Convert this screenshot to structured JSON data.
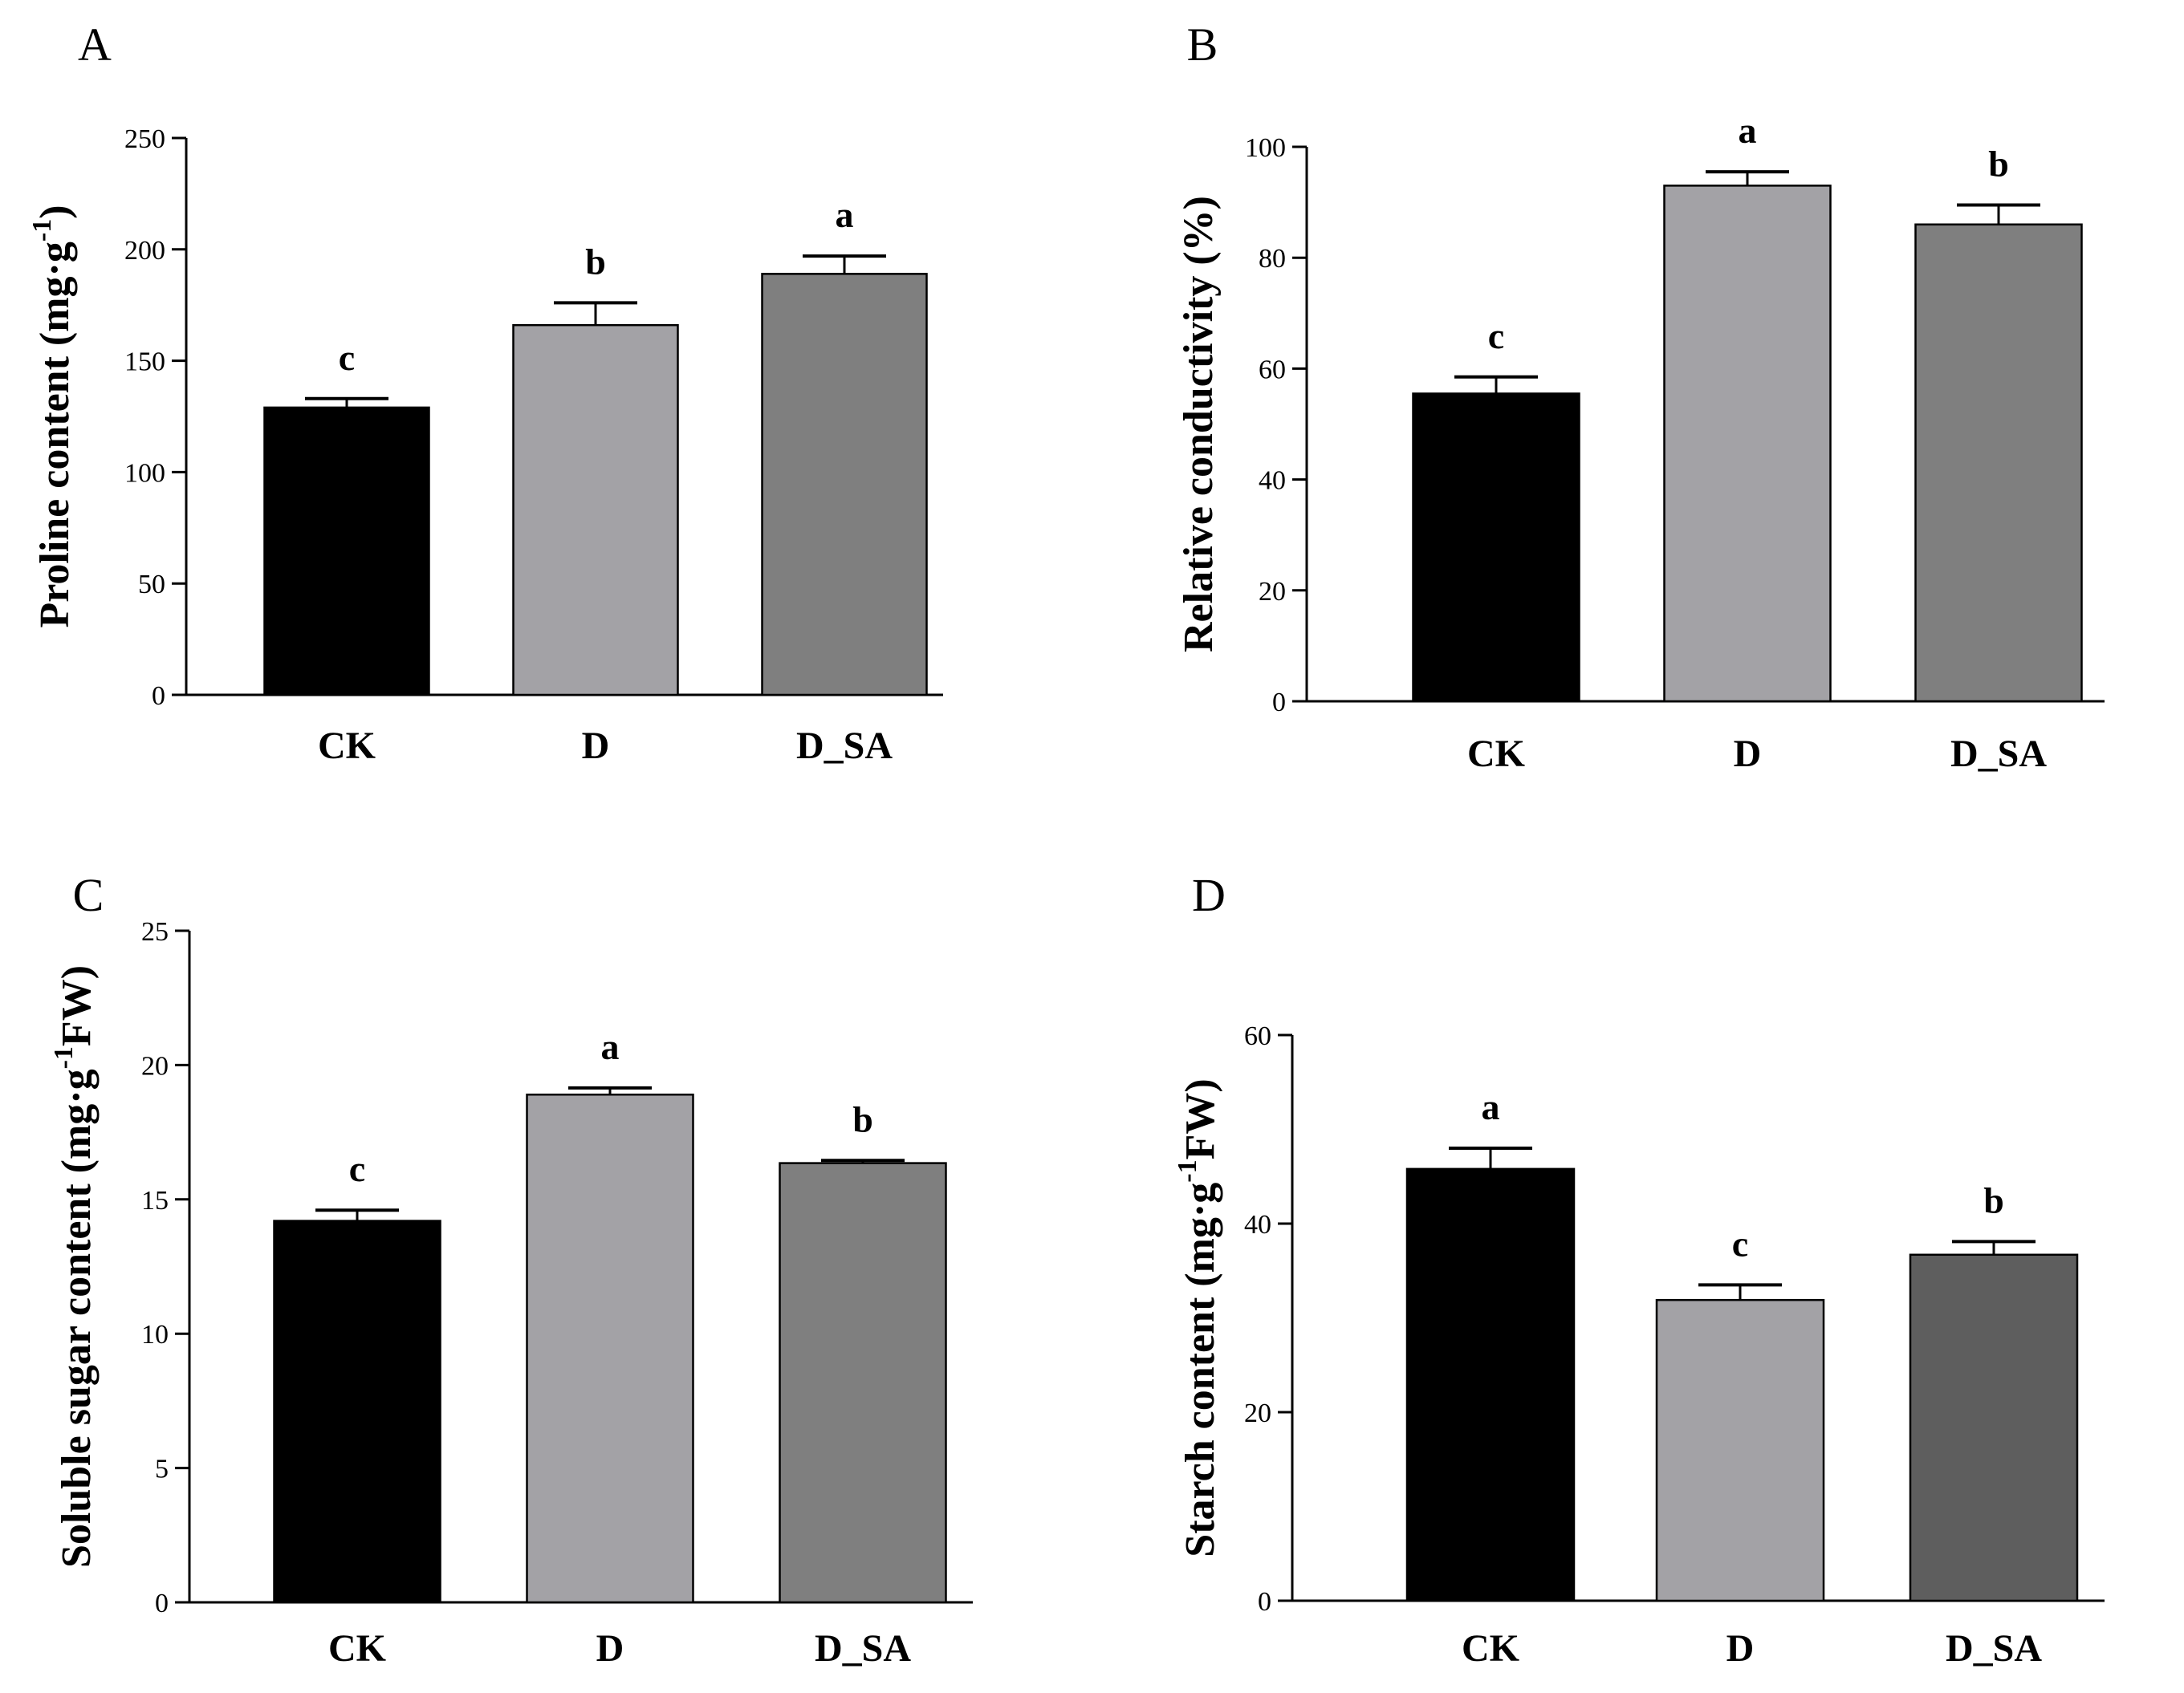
{
  "chart_data": [
    {
      "type": "bar",
      "panel": "A",
      "categories": [
        "CK",
        "D",
        "D_SA"
      ],
      "values": [
        129,
        166,
        189
      ],
      "errors": [
        4,
        10,
        8
      ],
      "significance": [
        "c",
        "b",
        "a"
      ],
      "ylabel": {
        "main": "Proline content  (mg",
        "dot": "·",
        "g": "g",
        "sup": "-1",
        "tail": ")"
      },
      "ylim": [
        0,
        250
      ],
      "yticks": [
        0,
        50,
        100,
        150,
        200,
        250
      ],
      "bar_colors": [
        "#000000",
        "#a3a2a6",
        "#7f7f7f"
      ]
    },
    {
      "type": "bar",
      "panel": "B",
      "categories": [
        "CK",
        "D",
        "D_SA"
      ],
      "values": [
        55.5,
        93,
        86
      ],
      "errors": [
        3,
        2.5,
        3.5
      ],
      "significance": [
        "c",
        "a",
        "b"
      ],
      "ylabel": {
        "main": "Relative conductivity (%)"
      },
      "ylim": [
        0,
        100
      ],
      "yticks": [
        0,
        20,
        40,
        60,
        80,
        100
      ],
      "bar_colors": [
        "#000000",
        "#a3a2a6",
        "#7f7f7f"
      ]
    },
    {
      "type": "bar",
      "panel": "C",
      "categories": [
        "CK",
        "D",
        "D_SA"
      ],
      "values": [
        14.2,
        18.9,
        16.35
      ],
      "errors": [
        0.4,
        0.25,
        0.1
      ],
      "significance": [
        "c",
        "a",
        "b"
      ],
      "ylabel": {
        "main": "Soluble sugar content (mg",
        "dot": "·",
        "g": "g",
        "sup": "-1",
        "tail": "FW)"
      },
      "ylim": [
        0,
        25
      ],
      "yticks": [
        0,
        5,
        10,
        15,
        20,
        25
      ],
      "bar_colors": [
        "#000000",
        "#a3a2a6",
        "#7f7f7f"
      ]
    },
    {
      "type": "bar",
      "panel": "D",
      "categories": [
        "CK",
        "D",
        "D_SA"
      ],
      "values": [
        45.8,
        31.9,
        36.7
      ],
      "errors": [
        2.2,
        1.6,
        1.4
      ],
      "significance": [
        "a",
        "c",
        "b"
      ],
      "ylabel": {
        "main": "Starch content (mg",
        "dot": "·",
        "g": "g",
        "sup": "-1",
        "tail": "FW)"
      },
      "ylim": [
        0,
        60
      ],
      "yticks": [
        0,
        20,
        40,
        60
      ],
      "bar_colors": [
        "#000000",
        "#a3a2a6",
        "#5e5e5e"
      ]
    }
  ]
}
